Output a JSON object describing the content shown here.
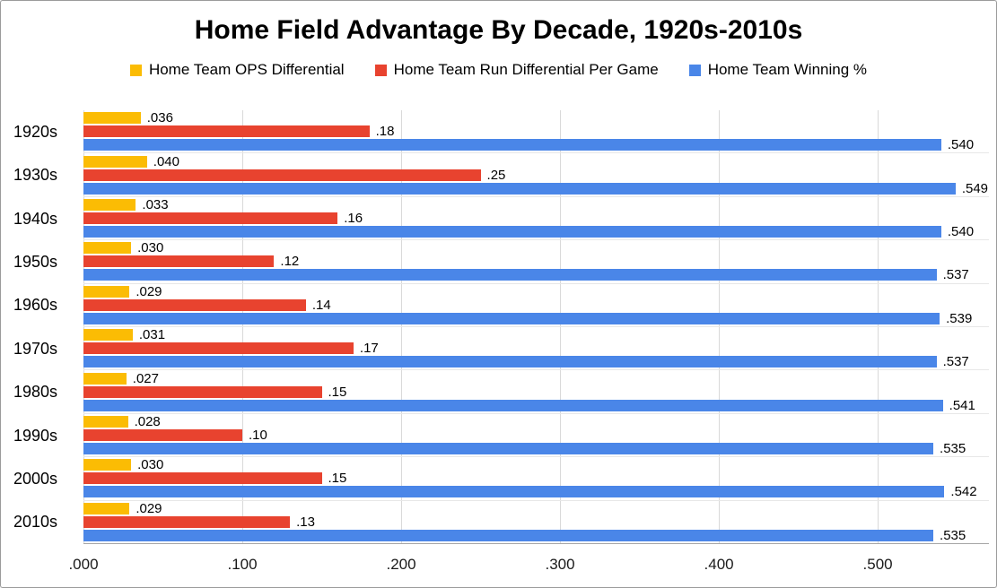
{
  "title": "Home Field Advantage By Decade, 1920s-2010s",
  "chart_data": {
    "type": "bar",
    "orientation": "horizontal",
    "title": "Home Field Advantage By Decade, 1920s-2010s",
    "xlabel": "",
    "ylabel": "",
    "grid": true,
    "legend_position": "top",
    "xlim": [
      0,
      0.57
    ],
    "x_ticks": [
      ".000",
      ".100",
      ".200",
      ".300",
      ".400",
      ".500"
    ],
    "categories": [
      "1920s",
      "1930s",
      "1940s",
      "1950s",
      "1960s",
      "1970s",
      "1980s",
      "1990s",
      "2000s",
      "2010s"
    ],
    "series": [
      {
        "name": "Home Team OPS Differential",
        "key": "ops-differential",
        "color": "#FBBC04",
        "values": [
          0.036,
          0.04,
          0.033,
          0.03,
          0.029,
          0.031,
          0.027,
          0.028,
          0.03,
          0.029
        ],
        "labels": [
          ".036",
          ".040",
          ".033",
          ".030",
          ".029",
          ".031",
          ".027",
          ".028",
          ".030",
          ".029"
        ]
      },
      {
        "name": "Home Team Run Differential Per Game",
        "key": "run-differential",
        "color": "#E8432F",
        "values": [
          0.18,
          0.25,
          0.16,
          0.12,
          0.14,
          0.17,
          0.15,
          0.1,
          0.15,
          0.13
        ],
        "labels": [
          ".18",
          ".25",
          ".16",
          ".12",
          ".14",
          ".17",
          ".15",
          ".10",
          ".15",
          ".13"
        ]
      },
      {
        "name": "Home Team Winning %",
        "key": "winning-pct",
        "color": "#4A86E8",
        "values": [
          0.54,
          0.549,
          0.54,
          0.537,
          0.539,
          0.537,
          0.541,
          0.535,
          0.542,
          0.535
        ],
        "labels": [
          ".540",
          ".549",
          ".540",
          ".537",
          ".539",
          ".537",
          ".541",
          ".535",
          ".542",
          ".535"
        ]
      }
    ]
  }
}
